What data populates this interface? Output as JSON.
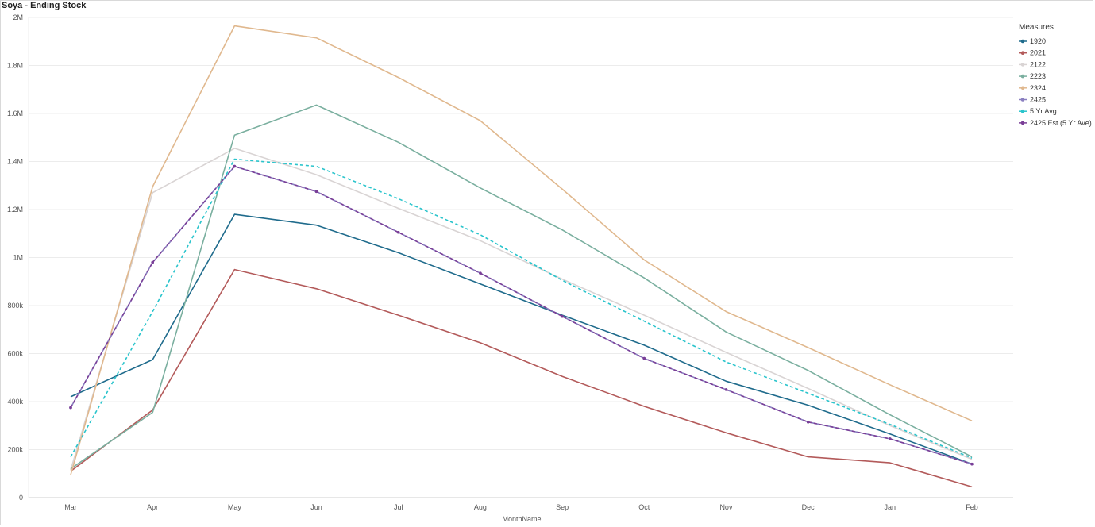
{
  "title": "Soya - Ending Stock",
  "chart_data": {
    "type": "line",
    "title": "Soya - Ending Stock",
    "xlabel": "MonthName",
    "ylabel": "",
    "categories": [
      "Mar",
      "Apr",
      "May",
      "Jun",
      "Jul",
      "Aug",
      "Sep",
      "Oct",
      "Nov",
      "Dec",
      "Jan",
      "Feb"
    ],
    "ylim": [
      0,
      2000000
    ],
    "yticks": [
      0,
      200000,
      400000,
      600000,
      800000,
      1000000,
      1200000,
      1400000,
      1600000,
      1800000,
      2000000
    ],
    "ytick_labels": [
      "0",
      "200k",
      "400k",
      "600k",
      "800k",
      "1M",
      "1.2M",
      "1.4M",
      "1.6M",
      "1.8M",
      "2M"
    ],
    "grid": true,
    "legend": {
      "title": "Measures",
      "placement": "top-right"
    },
    "series": [
      {
        "name": "1920",
        "color": "#1f6b8c",
        "dashed": false,
        "markers": false,
        "values": [
          420000,
          575000,
          1180000,
          1135000,
          1020000,
          890000,
          760000,
          635000,
          485000,
          385000,
          265000,
          140000
        ]
      },
      {
        "name": "2021",
        "color": "#b35a5a",
        "dashed": false,
        "markers": false,
        "values": [
          110000,
          365000,
          950000,
          870000,
          760000,
          645000,
          505000,
          380000,
          270000,
          170000,
          145000,
          45000
        ]
      },
      {
        "name": "2122",
        "color": "#d9d4d4",
        "dashed": false,
        "markers": false,
        "values": [
          115000,
          1270000,
          1455000,
          1345000,
          1205000,
          1070000,
          910000,
          760000,
          605000,
          455000,
          300000,
          160000
        ]
      },
      {
        "name": "2223",
        "color": "#7aaf9f",
        "dashed": false,
        "markers": false,
        "values": [
          120000,
          355000,
          1510000,
          1635000,
          1480000,
          1290000,
          1115000,
          915000,
          690000,
          530000,
          345000,
          170000
        ]
      },
      {
        "name": "2324",
        "color": "#e0b88e",
        "dashed": false,
        "markers": false,
        "values": [
          95000,
          1295000,
          1965000,
          1915000,
          1750000,
          1570000,
          1285000,
          990000,
          775000,
          625000,
          470000,
          320000
        ]
      },
      {
        "name": "2425",
        "color": "#8a7fc0",
        "dashed": false,
        "markers": true,
        "values": [
          375000,
          980000,
          1380000,
          1275000,
          1105000,
          935000,
          755000,
          580000,
          450000,
          315000,
          245000,
          140000
        ]
      },
      {
        "name": "5 Yr Avg",
        "color": "#2ac4cc",
        "dashed": true,
        "markers": false,
        "values": [
          170000,
          775000,
          1410000,
          1380000,
          1245000,
          1095000,
          905000,
          735000,
          565000,
          435000,
          305000,
          165000
        ]
      },
      {
        "name": "2425 Est (5 Yr Ave)",
        "color": "#7a3e97",
        "dashed": true,
        "markers": true,
        "values": [
          375000,
          980000,
          1380000,
          1275000,
          1105000,
          935000,
          755000,
          580000,
          450000,
          315000,
          245000,
          140000
        ]
      }
    ]
  }
}
